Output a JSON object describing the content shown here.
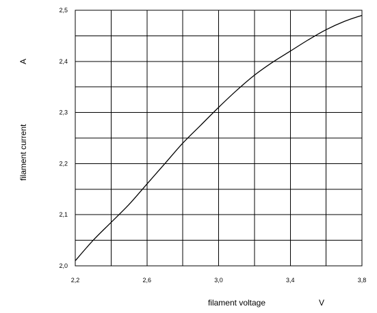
{
  "chart_data": {
    "type": "line",
    "title": "",
    "xlabel": "filament voltage",
    "xunit": "V",
    "ylabel": "filament current",
    "yunit": "A",
    "xlim": [
      2.2,
      3.8
    ],
    "ylim": [
      2.0,
      2.5
    ],
    "x_ticks": [
      "2,2",
      "2,6",
      "3,0",
      "3,4",
      "3,8"
    ],
    "x_tick_values": [
      2.2,
      2.6,
      3.0,
      3.4,
      3.8
    ],
    "y_ticks": [
      "2,0",
      "2,1",
      "2,2",
      "2,3",
      "2,4",
      "2,5"
    ],
    "y_tick_values": [
      2.0,
      2.1,
      2.2,
      2.3,
      2.4,
      2.5
    ],
    "grid": true,
    "x_grid_step": 0.2,
    "y_grid_step": 0.05,
    "series": [
      {
        "x": [
          2.2,
          2.3,
          2.4,
          2.5,
          2.6,
          2.7,
          2.8,
          2.9,
          3.0,
          3.1,
          3.2,
          3.3,
          3.4,
          3.5,
          3.6,
          3.7,
          3.8
        ],
        "values": [
          2.01,
          2.05,
          2.085,
          2.12,
          2.16,
          2.2,
          2.24,
          2.275,
          2.31,
          2.343,
          2.373,
          2.398,
          2.42,
          2.442,
          2.462,
          2.478,
          2.49
        ]
      }
    ],
    "colors": {
      "line": "#000000",
      "grid": "#000000"
    }
  }
}
